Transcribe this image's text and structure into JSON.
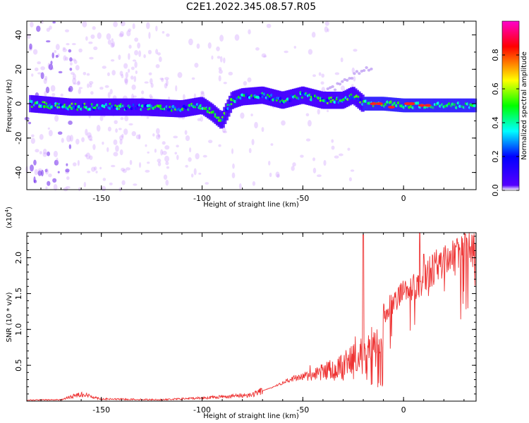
{
  "title": "C2E1.2022.345.08.57.R05",
  "colors": {
    "trace": "#ee3333",
    "colormap": [
      "#ffffff",
      "#5500ff",
      "#0000ff",
      "#00ffff",
      "#00ff00",
      "#ffff00",
      "#ff0000",
      "#ff00cc"
    ]
  },
  "chart_data": [
    {
      "type": "heatmap",
      "xlabel": "Height of straight line (km)",
      "ylabel": "Frequency (Hz)",
      "xlim": [
        -187,
        36
      ],
      "ylim": [
        -50,
        48
      ],
      "xticks": [
        -150,
        -100,
        -50,
        0
      ],
      "xtick_labels": [
        "-150",
        "-100",
        "-50",
        "0"
      ],
      "yticks": [
        -40,
        -20,
        0,
        20,
        40
      ],
      "ytick_labels": [
        "-40",
        "-20",
        "0",
        "20",
        "40"
      ],
      "colorbar": {
        "label": "Normalized spectral amplitude",
        "range": [
          0,
          1
        ],
        "ticks": [
          0.0,
          0.2,
          0.4,
          0.6,
          0.8
        ],
        "tick_labels": [
          "0.0",
          "0.2",
          "0.4",
          "0.6",
          "0.8"
        ]
      },
      "ridge": {
        "x": [
          -185,
          -165,
          -150,
          -130,
          -110,
          -100,
          -95,
          -90,
          -85,
          -80,
          -70,
          -60,
          -50,
          -40,
          -30,
          -25,
          -20,
          -10,
          0,
          10,
          20,
          36
        ],
        "y": [
          0,
          -2,
          -2,
          -2,
          -3,
          -1,
          -5,
          -10,
          2,
          4,
          5,
          2,
          5,
          2,
          2,
          5,
          0,
          0,
          -1,
          -1,
          -1,
          -1
        ]
      },
      "grid": false
    },
    {
      "type": "line",
      "xlabel": "Height of straight line (km)",
      "ylabel": "SNR (10 * v/v)",
      "y_multiplier_label": "(x10",
      "y_multiplier_exp": "4",
      "y_multiplier_close": ")",
      "xlim": [
        -187,
        36
      ],
      "ylim": [
        0,
        23500
      ],
      "xticks": [
        -150,
        -100,
        -50,
        0
      ],
      "xtick_labels": [
        "-150",
        "-100",
        "-50",
        "0"
      ],
      "yticks": [
        5000,
        10000,
        15000,
        20000
      ],
      "ytick_labels": [
        "0.5",
        "1.0",
        "1.5",
        "2.0"
      ],
      "envelope": {
        "x": [
          -187,
          -170,
          -160,
          -150,
          -120,
          -100,
          -85,
          -75,
          -65,
          -55,
          -45,
          -35,
          -25,
          -20,
          -15,
          -10,
          -5,
          0,
          5,
          10,
          15,
          20,
          25,
          36
        ],
        "y": [
          150,
          200,
          1000,
          300,
          200,
          450,
          700,
          900,
          2000,
          3500,
          4500,
          6000,
          8000,
          9500,
          11000,
          12500,
          14000,
          15500,
          16500,
          17500,
          19000,
          20000,
          21000,
          22000
        ]
      },
      "peaks": [
        {
          "x": -20,
          "y": 23200
        },
        {
          "x": 8,
          "y": 23500
        },
        {
          "x": 10,
          "y": 20500
        },
        {
          "x": 26,
          "y": 21500
        }
      ],
      "grid": false
    }
  ]
}
